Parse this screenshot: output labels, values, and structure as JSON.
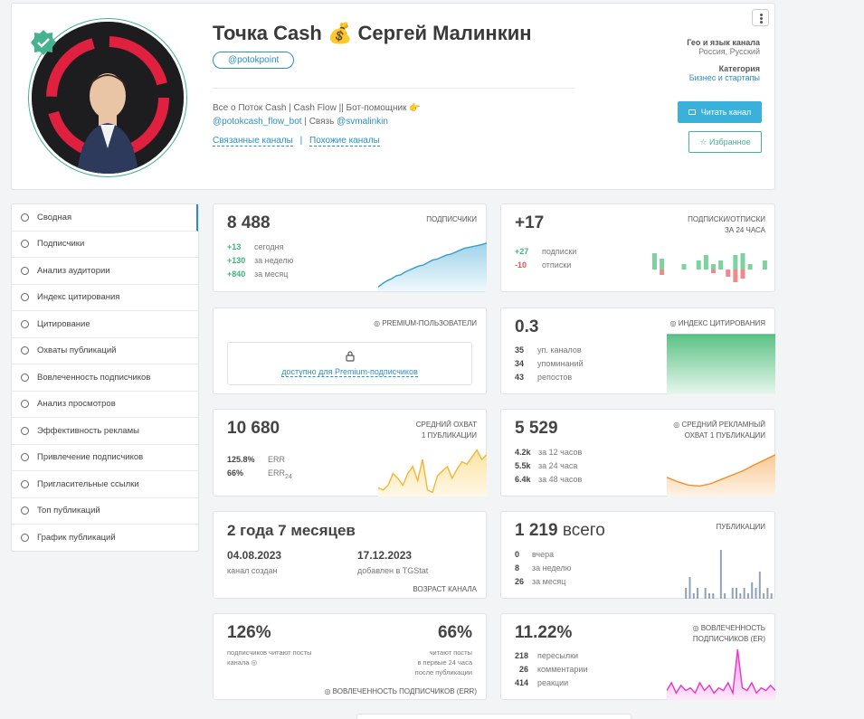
{
  "header": {
    "title": "Точка Cash 💰 Сергей Малинкин",
    "handle": "@potokpoint",
    "desc_prefix": "Все о Поток Cash | Cash Flow || Бот-помощник 👉 ",
    "desc_bot": "@potokcash_flow_bot",
    "desc_mid": " | Связь ",
    "desc_contact": "@svmalinkin",
    "related": "Связанные каналы",
    "similar": "Похожие каналы",
    "geo_label": "Гео и язык канала",
    "geo_value": "Россия, Русский",
    "category_label": "Категория",
    "category_value": "Бизнес и стартапы",
    "read_button": "Читать канал",
    "fav_button": "Избранное"
  },
  "sidebar": {
    "items": [
      {
        "label": "Сводная"
      },
      {
        "label": "Подписчики"
      },
      {
        "label": "Анализ аудитории"
      },
      {
        "label": "Индекс цитирования"
      },
      {
        "label": "Цитирование"
      },
      {
        "label": "Охваты публикаций"
      },
      {
        "label": "Вовлеченность подписчиков"
      },
      {
        "label": "Анализ просмотров"
      },
      {
        "label": "Эффективность рекламы"
      },
      {
        "label": "Привлечение подписчиков"
      },
      {
        "label": "Пригласительные ссылки"
      },
      {
        "label": "Топ публикаций"
      },
      {
        "label": "График публикаций"
      }
    ]
  },
  "subs": {
    "value": "8 488",
    "label": "ПОДПИСЧИКИ",
    "rows": [
      {
        "v": "+13",
        "t": "сегодня"
      },
      {
        "v": "+130",
        "t": "за неделю"
      },
      {
        "v": "+840",
        "t": "за месяц"
      }
    ],
    "spark": [
      0.05,
      0.12,
      0.18,
      0.22,
      0.28,
      0.3,
      0.36,
      0.4,
      0.44,
      0.48,
      0.5,
      0.55,
      0.6,
      0.62,
      0.66,
      0.7,
      0.72,
      0.76,
      0.8,
      0.84,
      0.86,
      0.88,
      0.9,
      0.92,
      0.95
    ]
  },
  "daily": {
    "value": "+17",
    "label1": "ПОДПИСКИ/ОТПИСКИ",
    "label2": "ЗА 24 ЧАСА",
    "rows": [
      {
        "v": "+27",
        "t": "подписки"
      },
      {
        "v": "-10",
        "t": "отписки"
      }
    ],
    "bars": [
      [
        18,
        0
      ],
      [
        12,
        6
      ],
      [
        0,
        0
      ],
      [
        0,
        0
      ],
      [
        6,
        0
      ],
      [
        0,
        0
      ],
      [
        10,
        0
      ],
      [
        16,
        0
      ],
      [
        6,
        4
      ],
      [
        10,
        0
      ],
      [
        0,
        8
      ],
      [
        16,
        14
      ],
      [
        18,
        10
      ],
      [
        6,
        0
      ],
      [
        0,
        0
      ],
      [
        10,
        0
      ]
    ]
  },
  "premium": {
    "label": "PREMIUM-ПОЛЬЗОВАТЕЛИ",
    "lock_text": "доступно для Premium-подписчиков"
  },
  "citation": {
    "value": "0.3",
    "label": "ИНДЕКС ЦИТИРОВАНИЯ",
    "rows": [
      {
        "v": "35",
        "t": "уп. каналов"
      },
      {
        "v": "34",
        "t": "упоминаний"
      },
      {
        "v": "43",
        "t": "репостов"
      }
    ]
  },
  "reach": {
    "value": "10 680",
    "label1": "СРЕДНИЙ ОХВАТ",
    "label2": "1 ПУБЛИКАЦИИ",
    "rows": [
      {
        "v": "125.8%",
        "t": "ERR"
      },
      {
        "v": "66%",
        "t": "ERR",
        "sub": "24"
      }
    ],
    "spark": [
      0.15,
      0.1,
      0.2,
      0.45,
      0.35,
      0.2,
      0.45,
      0.6,
      0.3,
      0.75,
      0.1,
      0.05,
      0.4,
      0.5,
      0.6,
      0.35,
      0.55,
      0.7,
      0.65,
      0.8,
      0.95,
      0.75,
      0.85
    ]
  },
  "adreach": {
    "value": "5 529",
    "label1": "СРЕДНИЙ РЕКЛАМНЫЙ",
    "label2": "ОХВАТ 1 ПУБЛИКАЦИИ",
    "rows": [
      {
        "v": "4.2k",
        "t": "за 12 часов"
      },
      {
        "v": "5.5k",
        "t": "за 24 часа"
      },
      {
        "v": "6.4k",
        "t": "за 48 часов"
      }
    ],
    "spark": [
      0.4,
      0.3,
      0.22,
      0.2,
      0.25,
      0.35,
      0.45,
      0.55,
      0.68,
      0.8,
      0.92
    ]
  },
  "age": {
    "value": "2 года 7 месяцев",
    "created_date": "04.08.2023",
    "created_label": "канал создан",
    "added_date": "17.12.2023",
    "added_label": "добавлен в TGStat",
    "label": "ВОЗРАСТ КАНАЛА"
  },
  "posts": {
    "value": "1 219",
    "suffix": "всего",
    "label": "ПУБЛИКАЦИИ",
    "rows": [
      {
        "v": "0",
        "t": "вчера"
      },
      {
        "v": "8",
        "t": "за неделю"
      },
      {
        "v": "26",
        "t": "за месяц"
      }
    ],
    "bars": [
      0,
      0,
      0,
      0,
      2,
      4,
      1,
      2,
      0,
      2,
      1,
      1,
      0,
      9,
      1,
      0,
      2,
      2,
      1,
      2,
      1,
      3,
      2,
      5,
      1,
      2,
      1
    ]
  },
  "err": {
    "left_value": "126%",
    "left_text": "подписчиков читают посты канала",
    "right_value": "66%",
    "right_text1": "читают посты",
    "right_text2": "в первые 24 часа",
    "right_text3": "после публикации",
    "label": "ВОВЛЕЧЕННОСТЬ ПОДПИСЧИКОВ (ERR)"
  },
  "er": {
    "value": "11.22%",
    "label1": "ВОВЛЕЧЕННОСТЬ",
    "label2": "ПОДПИСЧИКОВ (ER)",
    "rows": [
      {
        "v": "218",
        "t": "пересылки"
      },
      {
        "v": "26",
        "t": "комментарии"
      },
      {
        "v": "414",
        "t": "реакции"
      }
    ],
    "spark": [
      0.15,
      0.3,
      0.1,
      0.25,
      0.15,
      0.2,
      0.1,
      0.3,
      0.15,
      0.25,
      0.1,
      0.2,
      0.15,
      0.3,
      0.1,
      0.95,
      0.2,
      0.15,
      0.3,
      0.1,
      0.2,
      0.15,
      0.25,
      0.15
    ]
  },
  "colors": {
    "accent": "#2b8fc7",
    "green": "#3cb67a",
    "red": "#e35656"
  }
}
